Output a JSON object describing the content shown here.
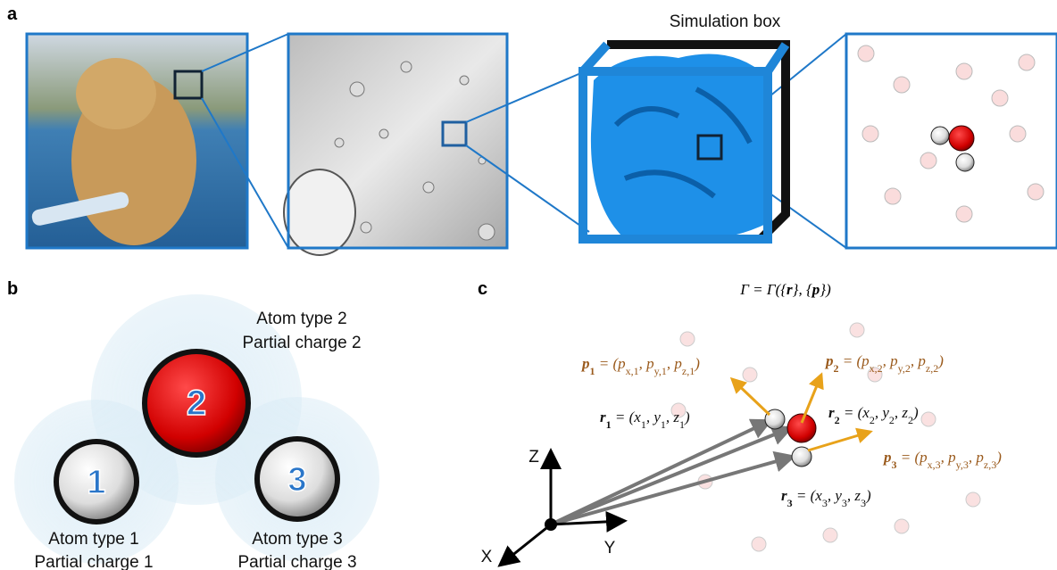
{
  "panels": {
    "a": {
      "label": "a",
      "title": "Simulation box"
    },
    "b": {
      "label": "b",
      "atoms": [
        {
          "number": "2",
          "type": "Atom type 2",
          "charge": "Partial charge 2"
        },
        {
          "number": "1",
          "type": "Atom type 1",
          "charge": "Partial charge 1"
        },
        {
          "number": "3",
          "type": "Atom type 3",
          "charge": "Partial charge 3"
        }
      ]
    },
    "c": {
      "label": "c",
      "state": [
        "Γ = Γ({",
        "r",
        "}, {",
        "p",
        "})"
      ],
      "momenta": [
        [
          "p",
          "1",
          " = (p",
          "x,1",
          ", p",
          "y,1",
          ", p",
          "z,1",
          ")"
        ],
        [
          "p",
          "2",
          " = (p",
          "x,2",
          ", p",
          "y,2",
          ", p",
          "z,2",
          ")"
        ],
        [
          "p",
          "3",
          " = (p",
          "x,3",
          ", p",
          "y,3",
          ", p",
          "z,3",
          ")"
        ]
      ],
      "positions": [
        [
          "r",
          "1",
          " = (x",
          "1",
          ", y",
          "1",
          ", z",
          "1",
          ")"
        ],
        [
          "r",
          "2",
          " = (x",
          "2",
          ", y",
          "2",
          ", z",
          "2",
          ")"
        ],
        [
          "r",
          "3",
          " = (x",
          "3",
          ", y",
          "3",
          ", z",
          "3",
          ")"
        ]
      ],
      "axes": [
        "Z",
        "Y",
        "X"
      ]
    }
  }
}
